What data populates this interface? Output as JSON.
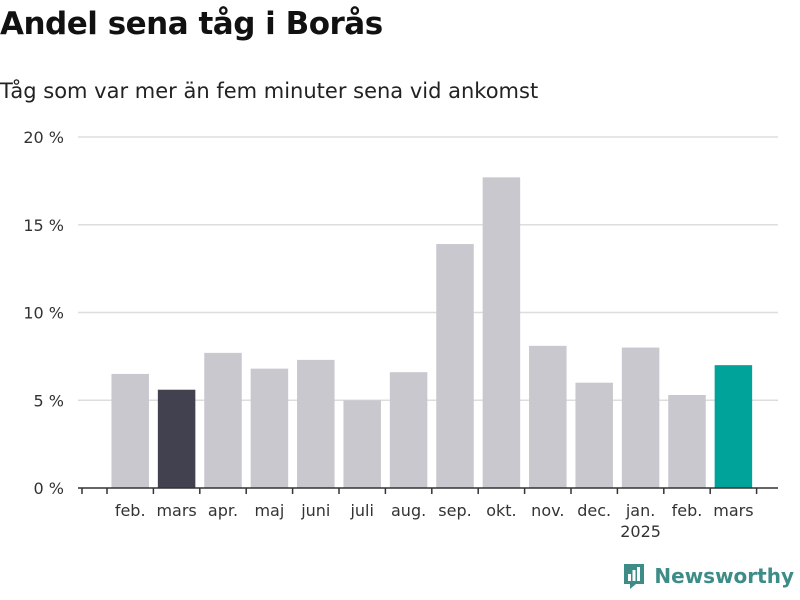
{
  "header": {
    "title": "Andel sena tåg i Borås",
    "subtitle": "Tåg som var mer än fem minuter sena vid ankomst"
  },
  "branding": {
    "name": "Newsworthy",
    "logo_icon": "bar-chart-logo-icon",
    "color": "#3d8c87"
  },
  "chart_data": {
    "type": "bar",
    "categories": [
      "feb.",
      "mars",
      "apr.",
      "maj",
      "juni",
      "juli",
      "aug.",
      "sep.",
      "okt.",
      "nov.",
      "dec.",
      "jan.",
      "feb.",
      "mars"
    ],
    "year_label": {
      "category_index": 11,
      "text": "2025"
    },
    "values": [
      6.5,
      5.6,
      7.7,
      6.8,
      7.3,
      5.0,
      6.6,
      13.9,
      17.7,
      8.1,
      6.0,
      8.0,
      5.3,
      7.0
    ],
    "ylim": [
      0,
      20
    ],
    "yticks": [
      0,
      5,
      10,
      15,
      20
    ],
    "ytick_labels": [
      "0 %",
      "5 %",
      "10 %",
      "15 %",
      "20 %"
    ],
    "grid": true,
    "colors": {
      "default": "#c8c8ce",
      "previous_year_same_month": "#414150",
      "latest": "#00a39a",
      "grid": "#dddddd",
      "axis": "#333333"
    },
    "highlight": {
      "1": "previous_year_same_month",
      "13": "latest"
    }
  }
}
